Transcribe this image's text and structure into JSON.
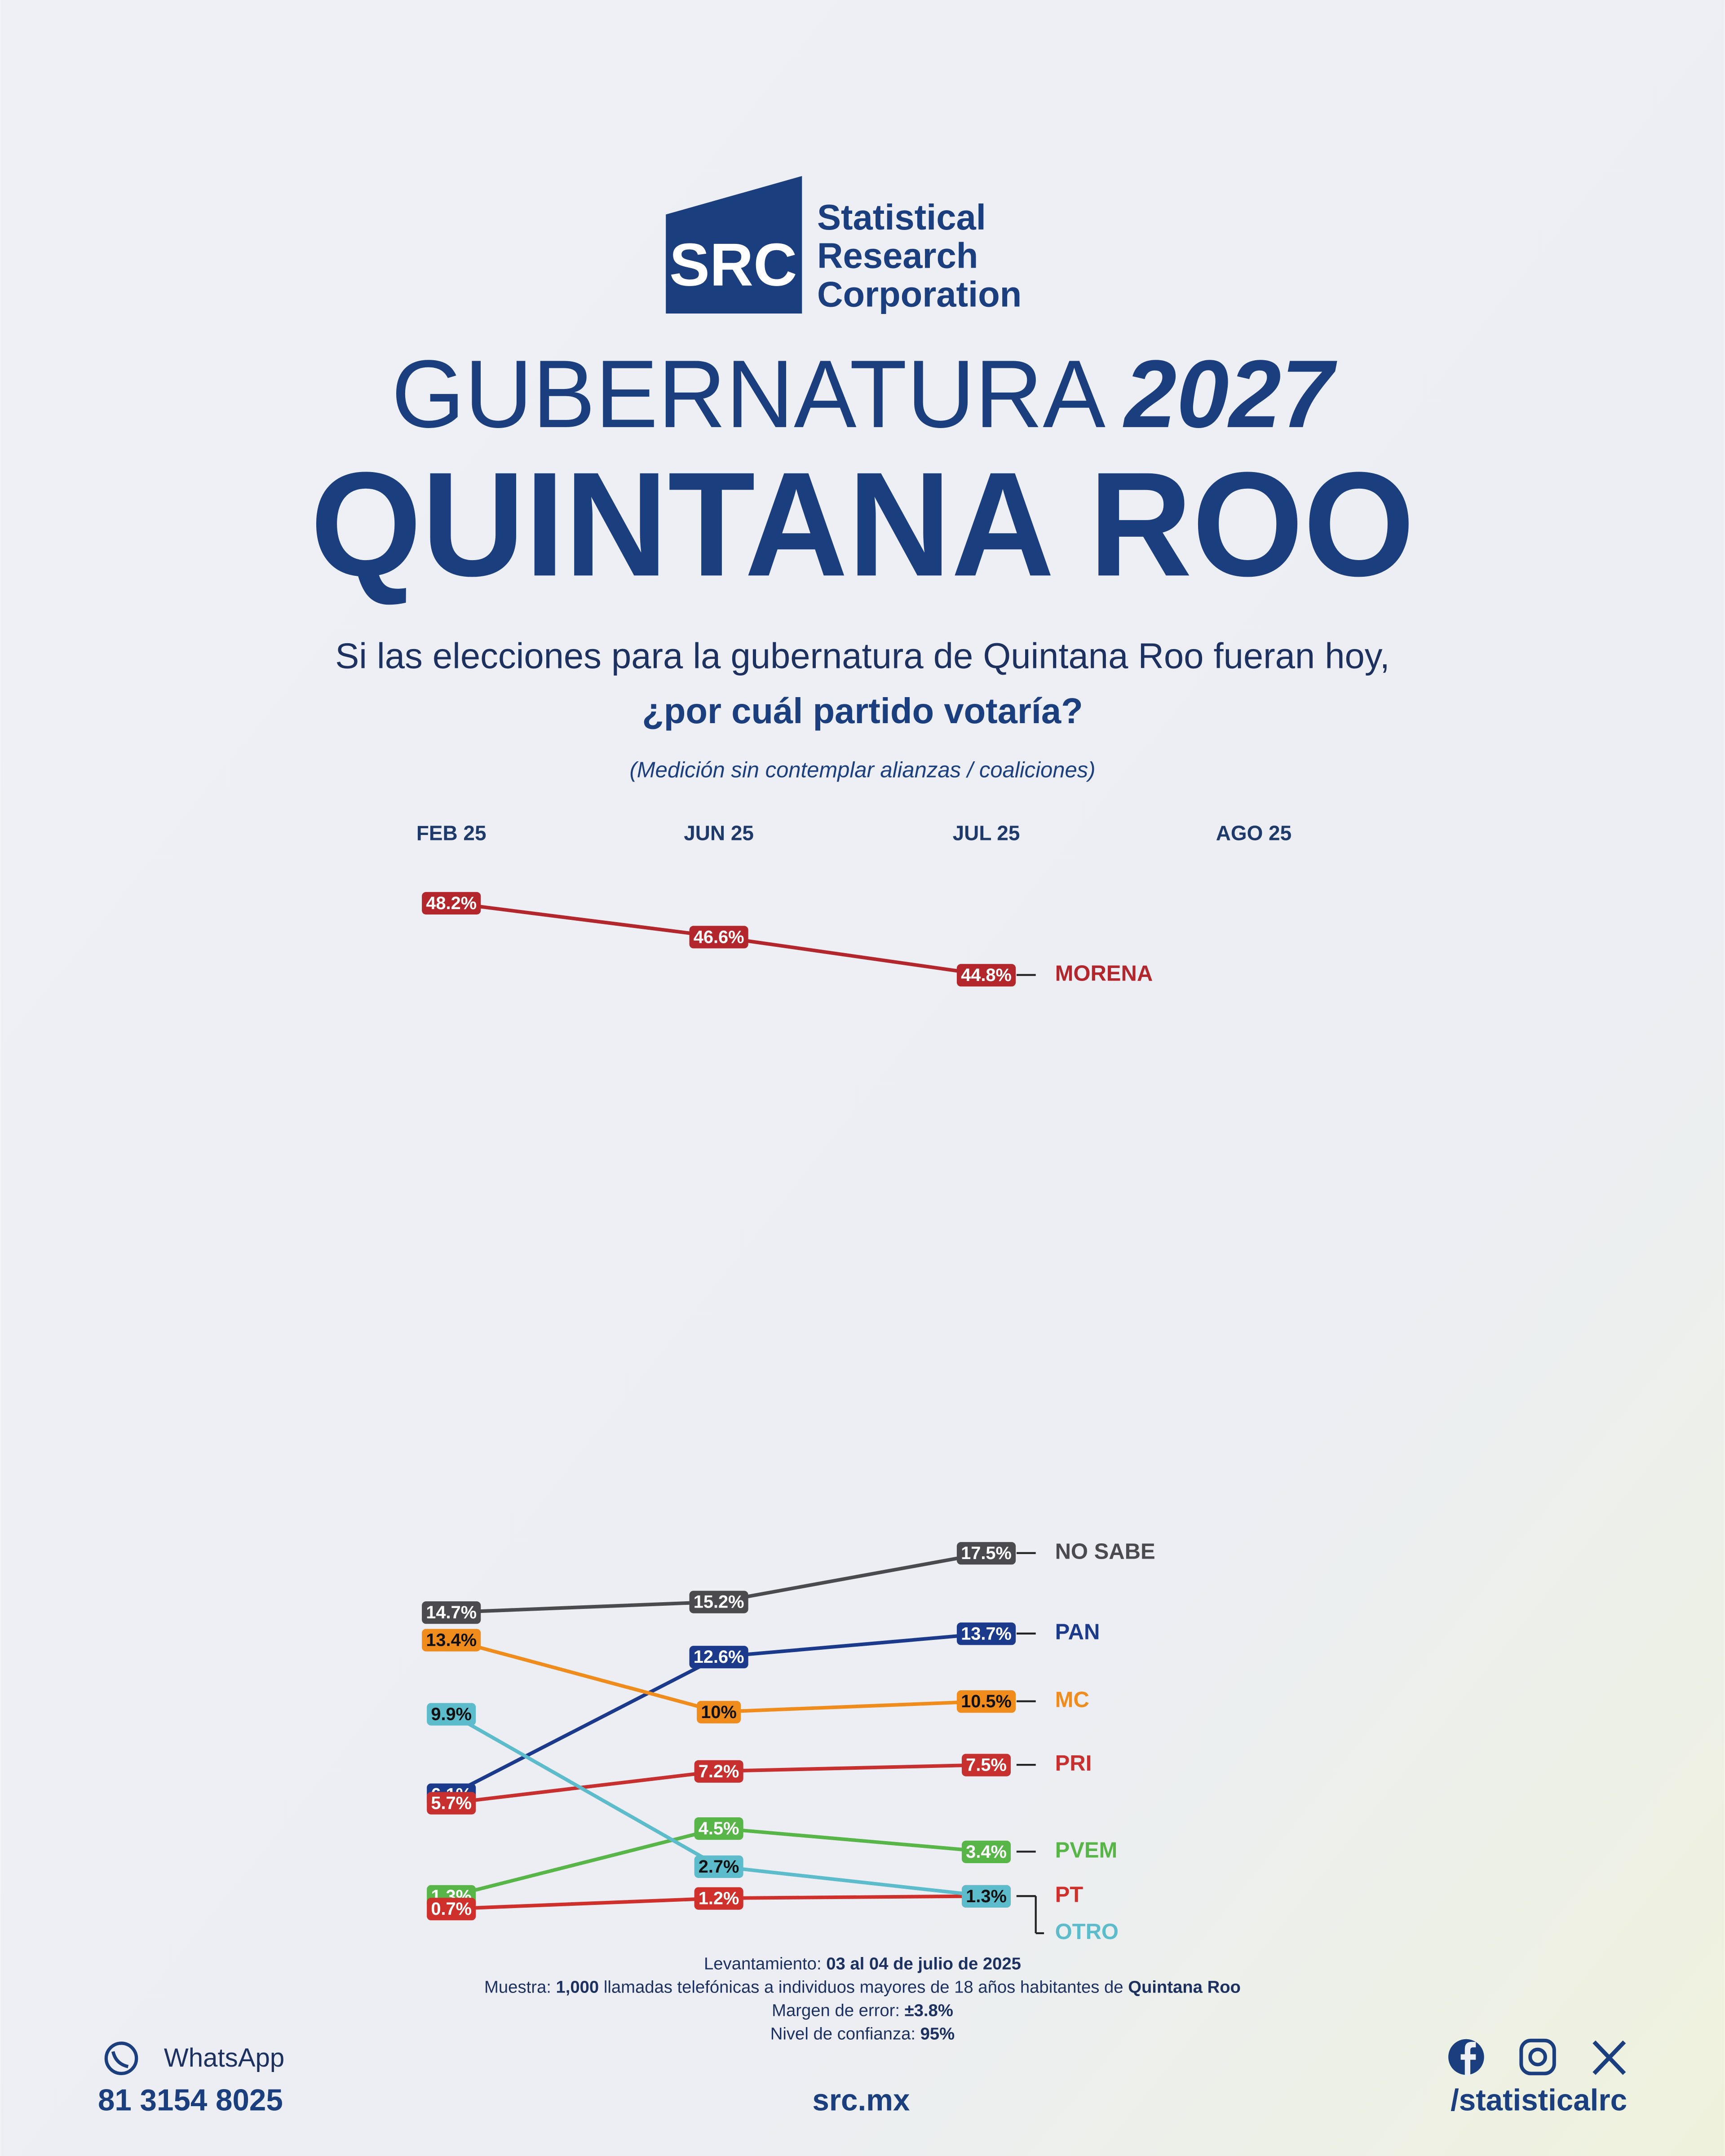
{
  "header": {
    "logo_mark": "SRC",
    "logo_lines": [
      "Statistical",
      "Research",
      "Corporation"
    ],
    "title_light": "GUBERNATURA",
    "title_year": "2027",
    "title_main": "QUINTANA ROO",
    "question": "Si las elecciones para la gubernatura de Quintana Roo fueran hoy,",
    "question_bold": "¿por cuál partido votaría?",
    "note": "(Medición sin contemplar alianzas / coaliciones)"
  },
  "chart_data": {
    "type": "line",
    "categories": [
      "FEB 25",
      "JUN 25",
      "JUL 25",
      "AGO 25"
    ],
    "ylim": [
      0,
      50
    ],
    "series": [
      {
        "name": "MORENA",
        "color": "#b3262b",
        "values": [
          48.2,
          46.6,
          44.8,
          null
        ],
        "value_labels": [
          "48.2%",
          "46.6%",
          "44.8%",
          null
        ]
      },
      {
        "name": "NO SABE",
        "color": "#4a4a4f",
        "values": [
          14.7,
          15.2,
          17.5,
          null
        ],
        "value_labels": [
          "14.7%",
          "15.2%",
          "17.5%",
          null
        ]
      },
      {
        "name": "PAN",
        "color": "#1c3a8c",
        "values": [
          6.1,
          12.6,
          13.7,
          null
        ],
        "value_labels": [
          "6.1%",
          "12.6%",
          "13.7%",
          null
        ]
      },
      {
        "name": "MC",
        "color": "#f08c1c",
        "values": [
          13.4,
          10,
          10.5,
          null
        ],
        "value_labels": [
          "13.4%",
          "10%",
          "10.5%",
          null
        ]
      },
      {
        "name": "PRI",
        "color": "#c8302f",
        "values": [
          5.7,
          7.2,
          7.5,
          null
        ],
        "value_labels": [
          "5.7%",
          "7.2%",
          "7.5%",
          null
        ]
      },
      {
        "name": "PVEM",
        "color": "#58b548",
        "values": [
          1.3,
          4.5,
          3.4,
          null
        ],
        "value_labels": [
          "1.3%",
          "4.5%",
          "3.4%",
          null
        ]
      },
      {
        "name": "PT",
        "color": "#d0302c",
        "values": [
          0.7,
          1.2,
          1.3,
          null
        ],
        "value_labels": [
          "0.7%",
          "1.2%",
          "1.3%",
          null
        ]
      },
      {
        "name": "OTRO",
        "color": "#5cbccb",
        "values": [
          9.9,
          2.7,
          1.3,
          null
        ],
        "value_labels": [
          "9.9%",
          "2.7%",
          "1.3%",
          null
        ]
      }
    ]
  },
  "methodology": [
    [
      "Levantamiento: ",
      "03 al 04 de julio de 2025"
    ],
    [
      "Muestra: ",
      "1,000",
      " llamadas telefónicas a individuos mayores de 18 años habitantes de ",
      "Quintana Roo"
    ],
    [
      "Margen de error: ",
      "±3.8%"
    ],
    [
      "Nivel de confianza: ",
      "95%"
    ]
  ],
  "footer": {
    "whatsapp_label": "WhatsApp",
    "phone": "81 3154 8025",
    "website": "src.mx",
    "social_handle": "/statisticalrc"
  }
}
